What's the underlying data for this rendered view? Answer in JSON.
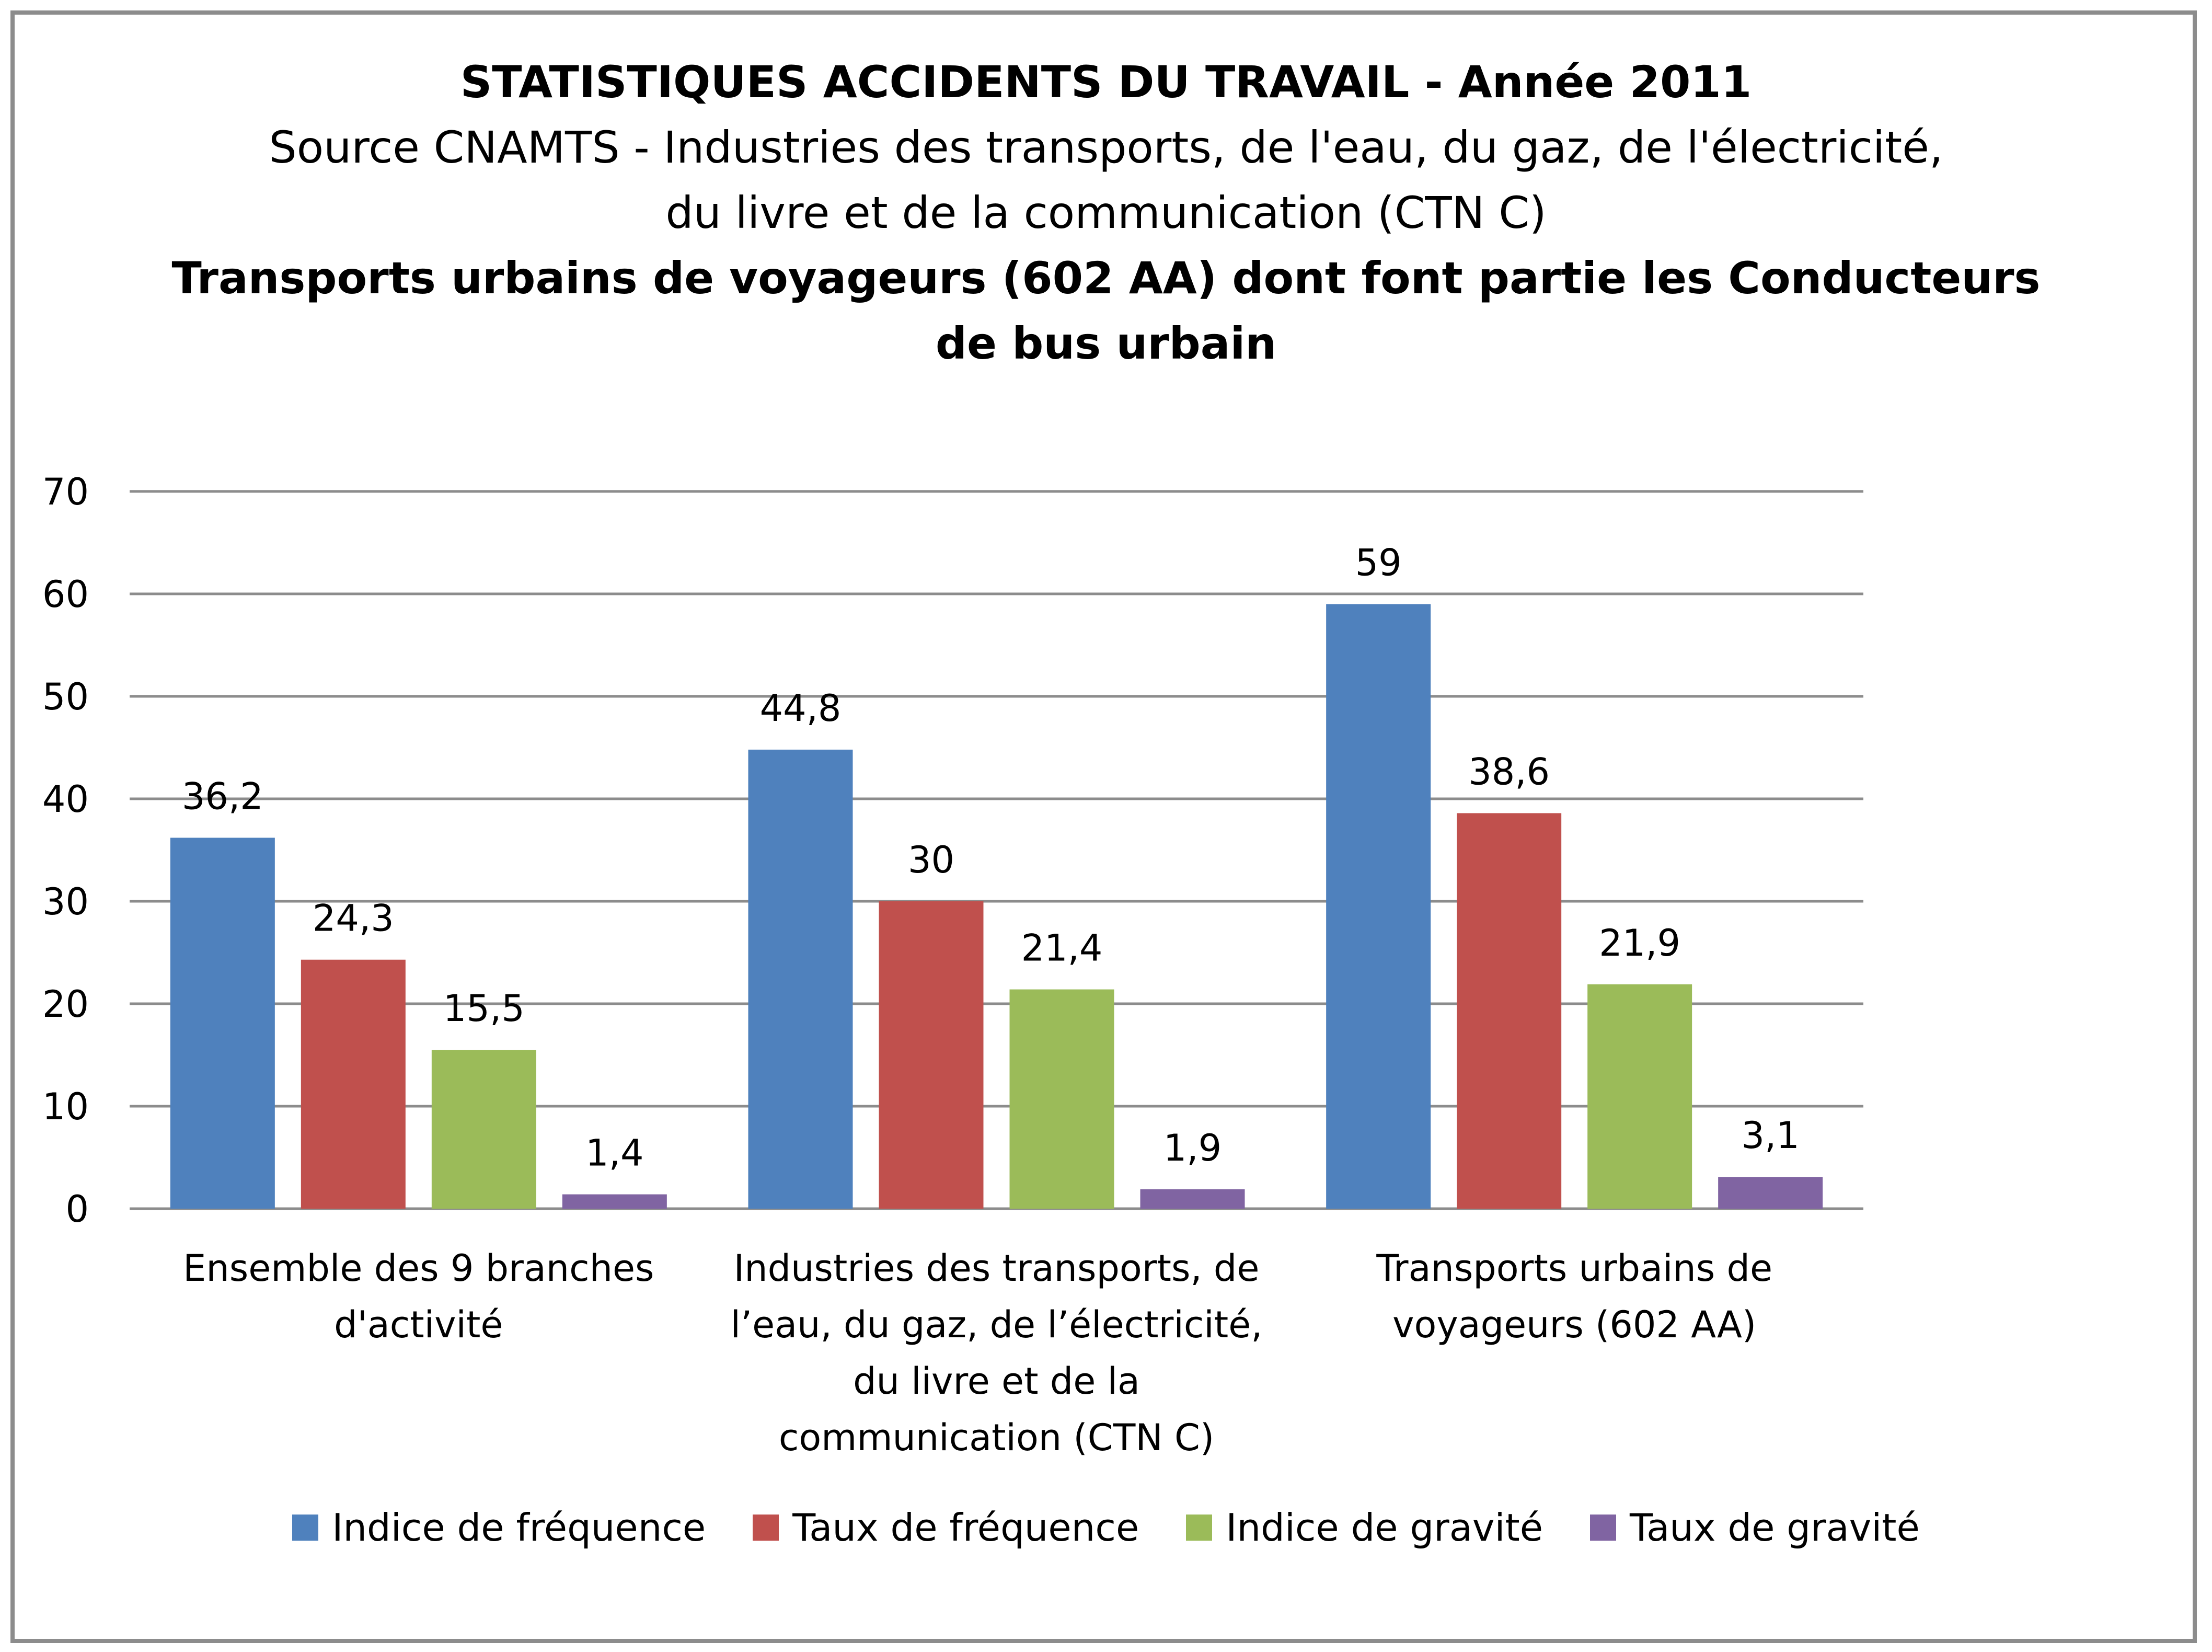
{
  "chart_data": {
    "type": "bar",
    "title": "STATISTIQUES ACCIDENTS DU TRAVAIL - Année 2011",
    "subtitle_lines": [
      "Source CNAMTS - Industries des transports, de l'eau, du gaz, de l'électricité,",
      "du livre et de la communication (CTN C)"
    ],
    "title2_lines": [
      "Transports urbains de voyageurs (602 AA) dont font partie les Conducteurs",
      "de bus urbain"
    ],
    "categories": [
      [
        "Ensemble des 9 branches",
        "d'activité"
      ],
      [
        "Industries des transports, de",
        "l’eau, du gaz, de l’électricité,",
        "du livre et de la",
        "communication (CTN C)"
      ],
      [
        "Transports urbains de",
        "voyageurs (602 AA)"
      ]
    ],
    "series": [
      {
        "name": "Indice de fréquence",
        "color": "#4f81bd",
        "values": [
          36.2,
          44.8,
          59
        ],
        "labels": [
          "36,2",
          "44,8",
          "59"
        ]
      },
      {
        "name": "Taux de fréquence",
        "color": "#c0504d",
        "values": [
          24.3,
          30,
          38.6
        ],
        "labels": [
          "24,3",
          "30",
          "38,6"
        ]
      },
      {
        "name": "Indice de gravité",
        "color": "#9bbb59",
        "values": [
          15.5,
          21.4,
          21.9
        ],
        "labels": [
          "15,5",
          "21,4",
          "21,9"
        ]
      },
      {
        "name": "Taux de gravité",
        "color": "#8064a2",
        "values": [
          1.4,
          1.9,
          3.1
        ],
        "labels": [
          "1,4",
          "1,9",
          "3,1"
        ]
      }
    ],
    "ylim": [
      0,
      70
    ],
    "yticks": [
      0,
      10,
      20,
      30,
      40,
      50,
      60,
      70
    ],
    "grid": true,
    "legend_position": "bottom"
  }
}
